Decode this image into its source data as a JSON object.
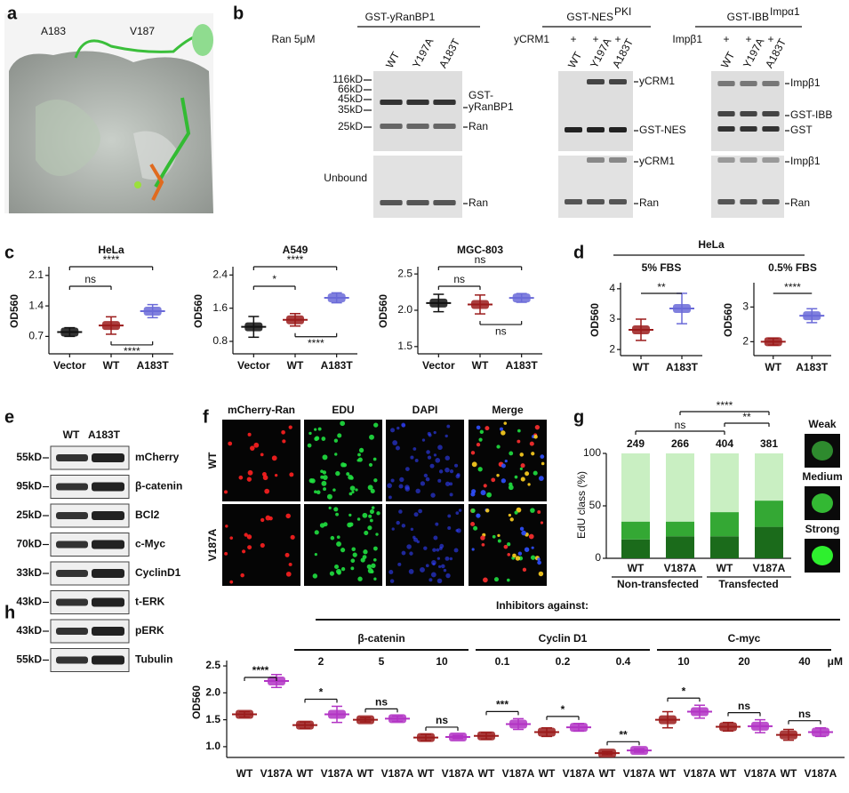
{
  "panels": {
    "a": {
      "letter": "a",
      "labels": [
        "A183",
        "V187"
      ]
    },
    "b": {
      "letter": "b",
      "ran_label": "Ran 5μM",
      "unbound_label": "Unbound",
      "markers": [
        "116kD",
        "66kD",
        "45kD",
        "35kD",
        "25kD"
      ],
      "gels": [
        {
          "title": "GST-yRanBP1",
          "lanes": [
            "WT",
            "Y197A",
            "A183T"
          ],
          "bound_labels": [
            "GST-",
            "yRanBP1",
            "Ran"
          ],
          "unbound_labels": [
            "Ran"
          ]
        },
        {
          "title": "GST-NES",
          "title_sup": "PKI",
          "partner": "yCRM1",
          "plus": [
            "+",
            "+",
            "+"
          ],
          "lanes": [
            "WT",
            "Y197A",
            "A183T"
          ],
          "bound_labels": [
            "yCRM1",
            "GST-NES"
          ],
          "unbound_labels": [
            "yCRM1",
            "Ran"
          ]
        },
        {
          "title": "GST-IBB",
          "title_sup": "Impα1",
          "partner": "Impβ1",
          "plus": [
            "+",
            "+",
            "+"
          ],
          "lanes": [
            "WT",
            "Y197A",
            "A183T"
          ],
          "bound_labels": [
            "Impβ1",
            "GST-IBB",
            "GST"
          ],
          "unbound_labels": [
            "Impβ1",
            "Ran"
          ]
        }
      ]
    },
    "c": {
      "letter": "c",
      "ylabel": "OD560",
      "plots": [
        {
          "title": "HeLa",
          "categories": [
            "Vector",
            "WT",
            "A183T"
          ],
          "colors": [
            "#111111",
            "#9b1b1b",
            "#6a6ad8"
          ],
          "ylim": [
            0.3,
            2.3
          ],
          "yticks": [
            0.7,
            1.4,
            2.1
          ],
          "mean": [
            0.8,
            0.95,
            1.28
          ],
          "sd": [
            0.1,
            0.2,
            0.15
          ],
          "sig": [
            "****",
            "ns",
            "****"
          ]
        },
        {
          "title": "A549",
          "categories": [
            "Vector",
            "WT",
            "A183T"
          ],
          "colors": [
            "#111111",
            "#9b1b1b",
            "#6a6ad8"
          ],
          "ylim": [
            0.5,
            2.6
          ],
          "yticks": [
            0.8,
            1.6,
            2.4
          ],
          "mean": [
            1.15,
            1.32,
            1.85
          ],
          "sd": [
            0.25,
            0.15,
            0.12
          ],
          "sig": [
            "****",
            "*",
            "****"
          ]
        },
        {
          "title": "MGC-803",
          "categories": [
            "Vector",
            "WT",
            "A183T"
          ],
          "colors": [
            "#111111",
            "#9b1b1b",
            "#6a6ad8"
          ],
          "ylim": [
            1.4,
            2.6
          ],
          "yticks": [
            1.5,
            {
              "value": 2,
              "label": "2.0"
            },
            2.5
          ],
          "mean": [
            2.1,
            2.08,
            2.17
          ],
          "sd": [
            0.12,
            0.13,
            0.06
          ],
          "sig": [
            "ns",
            "ns",
            "ns"
          ]
        }
      ]
    },
    "d": {
      "letter": "d",
      "title": "HeLa",
      "ylabel": "OD560",
      "plots": [
        {
          "title": "5% FBS",
          "categories": [
            "WT",
            "A183T"
          ],
          "colors": [
            "#9b1b1b",
            "#6a6ad8"
          ],
          "ylim": [
            1.8,
            4.2
          ],
          "yticks": [
            2,
            3,
            4
          ],
          "mean": [
            2.65,
            3.35
          ],
          "sd": [
            0.35,
            0.5
          ],
          "sig": [
            "**"
          ]
        },
        {
          "title": "0.5% FBS",
          "categories": [
            "WT",
            "A183T"
          ],
          "colors": [
            "#9b1b1b",
            "#6a6ad8"
          ],
          "ylim": [
            1.6,
            3.7
          ],
          "yticks": [
            2,
            3
          ],
          "mean": [
            2.0,
            2.75
          ],
          "sd": [
            0.1,
            0.2
          ],
          "sig": [
            "****"
          ]
        }
      ]
    },
    "e": {
      "letter": "e",
      "lanes": [
        "WT",
        "A183T"
      ],
      "rows": [
        {
          "size": "55kD",
          "name": "mCherry"
        },
        {
          "size": "95kD",
          "name": "β-catenin"
        },
        {
          "size": "25kD",
          "name": "BCl2"
        },
        {
          "size": "70kD",
          "name": "c-Myc"
        },
        {
          "size": "33kD",
          "name": "CyclinD1"
        },
        {
          "size": "43kD",
          "name": "t-ERK"
        },
        {
          "size": "43kD",
          "name": "pERK"
        },
        {
          "size": "55kD",
          "name": "Tubulin"
        }
      ]
    },
    "f": {
      "letter": "f",
      "columns": [
        "mCherry-Ran",
        "EDU",
        "DAPI",
        "Merge"
      ],
      "rows": [
        "WT",
        "V187A"
      ]
    },
    "g": {
      "letter": "g",
      "ylabel": "EdU class (%)",
      "ylim": [
        0,
        100
      ],
      "yticks": [
        0,
        50,
        100
      ],
      "categories": [
        "WT",
        "V187A",
        "WT",
        "V187A"
      ],
      "groups": [
        "Non-transfected",
        "Transfected"
      ],
      "counts": [
        249,
        266,
        404,
        381
      ],
      "series": [
        {
          "name": "Strong",
          "color": "#1b6b1b",
          "values": [
            18,
            21,
            21,
            30
          ]
        },
        {
          "name": "Medium",
          "color": "#34a834",
          "values": [
            17,
            14,
            23,
            25
          ]
        },
        {
          "name": "Weak",
          "color": "#c9efc2",
          "values": [
            65,
            65,
            56,
            45
          ]
        }
      ],
      "sig": [
        "ns",
        "****",
        "**"
      ]
    },
    "h": {
      "letter": "h",
      "ylabel": "OD560",
      "header": "Inhibitors against:",
      "unit": "μM",
      "ylim": [
        0.8,
        2.6
      ],
      "yticks": [
        {
          "value": 1,
          "label": "1.0"
        },
        1.5,
        {
          "value": 2,
          "label": "2.0"
        },
        2.5
      ],
      "colors": [
        "#9b1b1b",
        "#b233c4"
      ],
      "inhibitors": [
        {
          "name": "β-catenin",
          "doses": [
            2,
            5,
            10
          ]
        },
        {
          "name": "Cyclin D1",
          "doses": [
            0.1,
            0.2,
            0.4
          ]
        },
        {
          "name": "C-myc",
          "doses": [
            10,
            20,
            40
          ]
        }
      ],
      "pairs": [
        {
          "labels": [
            "WT",
            "V187A"
          ],
          "mean": [
            1.6,
            2.22
          ],
          "sd": [
            0.05,
            0.12
          ],
          "sig": "****"
        },
        {
          "labels": [
            "WT",
            "V187A"
          ],
          "mean": [
            1.4,
            1.6
          ],
          "sd": [
            0.06,
            0.15
          ],
          "sig": "*"
        },
        {
          "labels": [
            "WT",
            "V187A"
          ],
          "mean": [
            1.5,
            1.52
          ],
          "sd": [
            0.04,
            0.05
          ],
          "sig": "ns"
        },
        {
          "labels": [
            "WT",
            "V187A"
          ],
          "mean": [
            1.17,
            1.18
          ],
          "sd": [
            0.06,
            0.03
          ],
          "sig": "ns"
        },
        {
          "labels": [
            "WT",
            "V187A"
          ],
          "mean": [
            1.2,
            1.42
          ],
          "sd": [
            0.06,
            0.1
          ],
          "sig": "***"
        },
        {
          "labels": [
            "WT",
            "V187A"
          ],
          "mean": [
            1.27,
            1.36
          ],
          "sd": [
            0.08,
            0.07
          ],
          "sig": "*"
        },
        {
          "labels": [
            "WT",
            "V187A"
          ],
          "mean": [
            0.88,
            0.93
          ],
          "sd": [
            0.03,
            0.03
          ],
          "sig": "**"
        },
        {
          "labels": [
            "WT",
            "V187A"
          ],
          "mean": [
            1.5,
            1.65
          ],
          "sd": [
            0.15,
            0.12
          ],
          "sig": "*"
        },
        {
          "labels": [
            "WT",
            "V187A"
          ],
          "mean": [
            1.37,
            1.38
          ],
          "sd": [
            0.08,
            0.12
          ],
          "sig": "ns"
        },
        {
          "labels": [
            "WT",
            "V187A"
          ],
          "mean": [
            1.22,
            1.27
          ],
          "sd": [
            0.1,
            0.08
          ],
          "sig": "ns"
        }
      ]
    }
  }
}
